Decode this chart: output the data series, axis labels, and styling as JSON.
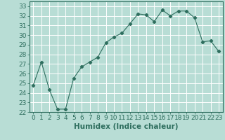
{
  "x": [
    0,
    1,
    2,
    3,
    4,
    5,
    6,
    7,
    8,
    9,
    10,
    11,
    12,
    13,
    14,
    15,
    16,
    17,
    18,
    19,
    20,
    21,
    22,
    23
  ],
  "y": [
    24.8,
    27.2,
    24.3,
    22.3,
    22.3,
    25.5,
    26.7,
    27.2,
    27.7,
    29.2,
    29.8,
    30.2,
    31.2,
    32.2,
    32.1,
    31.4,
    32.6,
    32.0,
    32.5,
    32.5,
    31.8,
    29.3,
    29.4,
    28.3
  ],
  "xlabel": "Humidex (Indice chaleur)",
  "xlim": [
    -0.5,
    23.5
  ],
  "ylim": [
    22,
    33.5
  ],
  "yticks": [
    22,
    23,
    24,
    25,
    26,
    27,
    28,
    29,
    30,
    31,
    32,
    33
  ],
  "xticks": [
    0,
    1,
    2,
    3,
    4,
    5,
    6,
    7,
    8,
    9,
    10,
    11,
    12,
    13,
    14,
    15,
    16,
    17,
    18,
    19,
    20,
    21,
    22,
    23
  ],
  "line_color": "#2e6e5e",
  "marker": "D",
  "marker_size": 2.2,
  "bg_color": "#b8ddd5",
  "grid_color": "#ffffff",
  "axes_color": "#2e6e5e",
  "tick_label_fontsize": 6.5,
  "xlabel_fontsize": 7.5
}
